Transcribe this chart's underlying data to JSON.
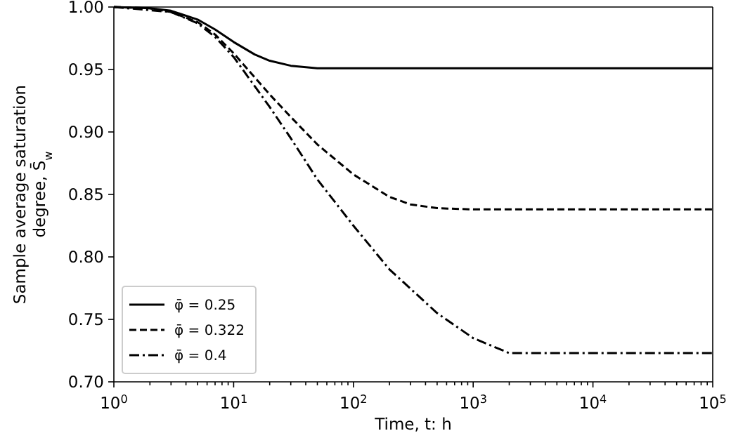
{
  "chart_data": {
    "type": "line",
    "xlabel": "Time, t: h",
    "ylabel": "Sample average saturation degree, S̄$_{w}$",
    "log": "x",
    "xlim": [
      1,
      100000
    ],
    "ylim": [
      0.7,
      1.0
    ],
    "xticks": [
      {
        "value": 1,
        "label": "10$^{0}$"
      },
      {
        "value": 2,
        "label": null
      },
      {
        "value": 3,
        "label": null
      },
      {
        "value": 4,
        "label": null
      },
      {
        "value": 5,
        "label": null
      },
      {
        "value": 6,
        "label": null
      },
      {
        "value": 7,
        "label": null
      },
      {
        "value": 8,
        "label": null
      },
      {
        "value": 9,
        "label": null
      },
      {
        "value": 10,
        "label": "10$^{1}$"
      },
      {
        "value": 20,
        "label": null
      },
      {
        "value": 30,
        "label": null
      },
      {
        "value": 40,
        "label": null
      },
      {
        "value": 50,
        "label": null
      },
      {
        "value": 60,
        "label": null
      },
      {
        "value": 70,
        "label": null
      },
      {
        "value": 80,
        "label": null
      },
      {
        "value": 90,
        "label": null
      },
      {
        "value": 100,
        "label": "10$^{2}$"
      },
      {
        "value": 200,
        "label": null
      },
      {
        "value": 300,
        "label": null
      },
      {
        "value": 400,
        "label": null
      },
      {
        "value": 500,
        "label": null
      },
      {
        "value": 600,
        "label": null
      },
      {
        "value": 700,
        "label": null
      },
      {
        "value": 800,
        "label": null
      },
      {
        "value": 900,
        "label": null
      },
      {
        "value": 1000,
        "label": "10$^{3}$"
      },
      {
        "value": 2000,
        "label": null
      },
      {
        "value": 3000,
        "label": null
      },
      {
        "value": 4000,
        "label": null
      },
      {
        "value": 5000,
        "label": null
      },
      {
        "value": 6000,
        "label": null
      },
      {
        "value": 7000,
        "label": null
      },
      {
        "value": 8000,
        "label": null
      },
      {
        "value": 9000,
        "label": null
      },
      {
        "value": 10000,
        "label": "10$^{4}$"
      },
      {
        "value": 20000,
        "label": null
      },
      {
        "value": 30000,
        "label": null
      },
      {
        "value": 40000,
        "label": null
      },
      {
        "value": 50000,
        "label": null
      },
      {
        "value": 60000,
        "label": null
      },
      {
        "value": 70000,
        "label": null
      },
      {
        "value": 80000,
        "label": null
      },
      {
        "value": 90000,
        "label": null
      },
      {
        "value": 100000,
        "label": "10$^{5}$"
      }
    ],
    "yticks": [
      {
        "value": 0.7,
        "label": "0.70"
      },
      {
        "value": 0.75,
        "label": "0.75"
      },
      {
        "value": 0.8,
        "label": "0.80"
      },
      {
        "value": 0.85,
        "label": "0.85"
      },
      {
        "value": 0.9,
        "label": "0.90"
      },
      {
        "value": 0.95,
        "label": "0.95"
      },
      {
        "value": 1.0,
        "label": "1.00"
      }
    ],
    "legend": "bottom left",
    "grid": false,
    "series": [
      {
        "name": "φ̄ = 0.25",
        "color": "#000000",
        "line_style": "solid",
        "x": [
          1,
          2,
          3,
          5,
          7,
          10,
          15,
          20,
          30,
          50,
          100,
          100000
        ],
        "values": [
          1.0,
          0.999,
          0.997,
          0.99,
          0.982,
          0.972,
          0.962,
          0.957,
          0.953,
          0.951,
          0.951,
          0.951
        ]
      },
      {
        "name": "φ̄ = 0.322",
        "color": "#000000",
        "line_style": "dashed",
        "x": [
          1,
          2,
          3,
          5,
          7,
          10,
          20,
          30,
          50,
          100,
          200,
          300,
          500,
          1000,
          100000
        ],
        "values": [
          1.0,
          0.999,
          0.996,
          0.988,
          0.978,
          0.963,
          0.93,
          0.912,
          0.89,
          0.866,
          0.848,
          0.842,
          0.839,
          0.838,
          0.838
        ]
      },
      {
        "name": "φ̄ = 0.4",
        "color": "#000000",
        "line_style": "dashdot",
        "x": [
          1,
          3,
          5,
          7,
          10,
          20,
          30,
          50,
          100,
          200,
          500,
          1000,
          2000,
          100000
        ],
        "values": [
          1.0,
          0.996,
          0.987,
          0.976,
          0.96,
          0.92,
          0.895,
          0.862,
          0.825,
          0.79,
          0.755,
          0.735,
          0.723,
          0.723
        ]
      }
    ]
  }
}
